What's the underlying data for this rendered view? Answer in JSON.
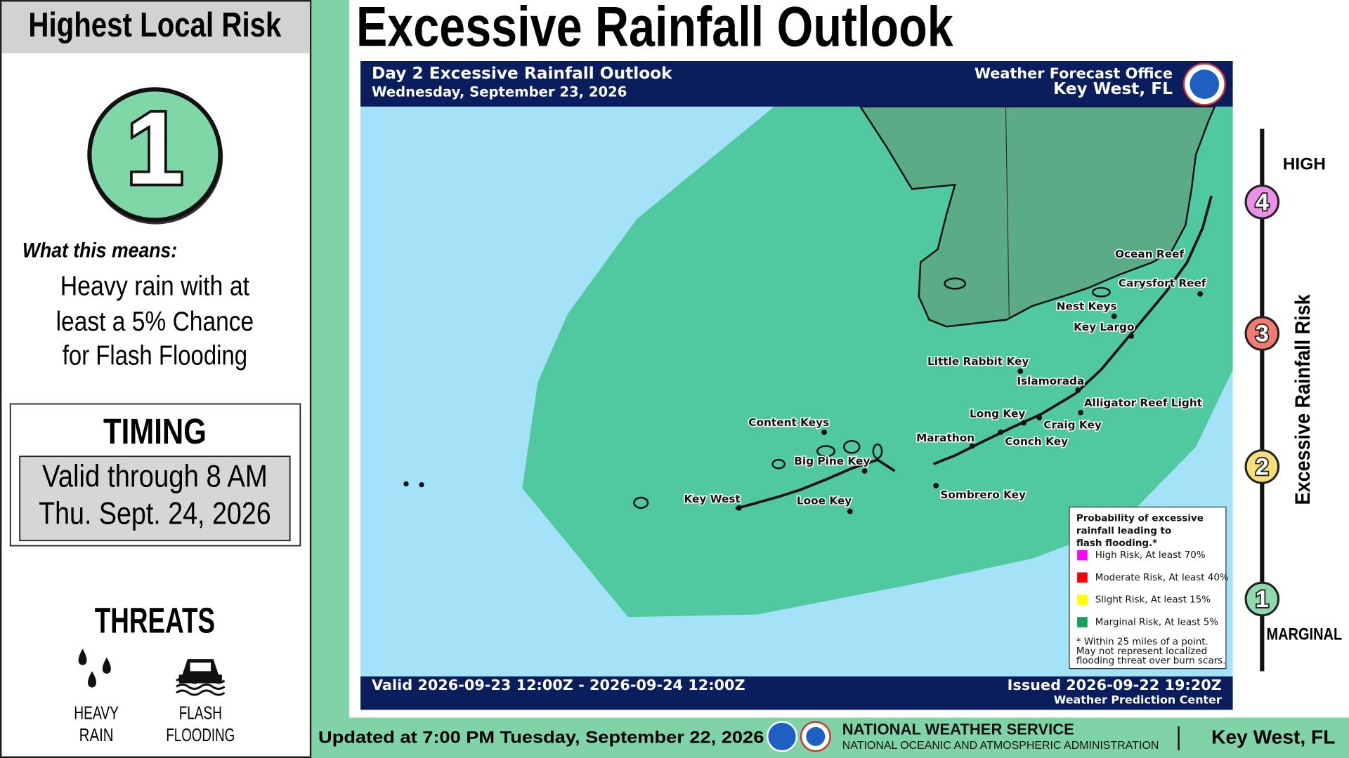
{
  "left_panel": {
    "header": "Highest Local Risk",
    "risk_level": "1",
    "risk_color": "#7fd6a6",
    "meaning_label": "What this means:",
    "meaning_lines": [
      "Heavy rain with at",
      "least a 5% Chance",
      "for Flash Flooding"
    ],
    "timing": {
      "title": "TIMING",
      "lines": [
        "Valid through 8 AM",
        "Thu. Sept. 24, 2026"
      ]
    },
    "threats": {
      "title": "THREATS",
      "items": [
        {
          "label_lines": [
            "HEAVY",
            "RAIN"
          ]
        },
        {
          "label_lines": [
            "FLASH",
            "FLOODING"
          ]
        }
      ]
    }
  },
  "title": "Excessive Rainfall Outlook",
  "map": {
    "header_left": [
      "Day 2 Excessive Rainfall Outlook",
      "Wednesday, September 23, 2026"
    ],
    "header_right": [
      "Weather Forecast Office",
      "Key West, FL"
    ],
    "footer_left": "Valid 2026-09-23 12:00Z - 2026-09-24 12:00Z",
    "footer_right": [
      "Issued 2026-09-22 19:20Z",
      "Weather Prediction Center"
    ],
    "places": [
      "Ocean Reef",
      "Carysfort Reef",
      "Nest Keys",
      "Key Largo",
      "Little Rabbit Key",
      "Islamorada",
      "Alligator Reef Light",
      "Long Key",
      "Craig Key",
      "Marathon",
      "Conch Key",
      "Content Keys",
      "Big Pine Key",
      "Key West",
      "Looe Key",
      "Sombrero Key"
    ],
    "legend": {
      "title_lines": [
        "Probability of excessive",
        "rainfall leading to",
        "flash flooding.*"
      ],
      "items": [
        {
          "label": "High Risk, At least 70%",
          "color": "#ff00ff"
        },
        {
          "label": "Moderate Risk, At least 40%",
          "color": "#ff0000"
        },
        {
          "label": "Slight Risk, At least 15%",
          "color": "#ffff00"
        },
        {
          "label": "Marginal Risk, At least 5%",
          "color": "#1aa05a"
        }
      ],
      "note_lines": [
        "* Within 25 miles of a point.",
        "May not represent localized",
        "flooding threat over burn scars."
      ]
    }
  },
  "risk_scale": {
    "high_label": "HIGH",
    "low_label": "MARGINAL",
    "axis_label": "Excessive Rainfall Risk",
    "levels": [
      {
        "label": "4",
        "color": "#ec8fe8"
      },
      {
        "label": "3",
        "color": "#f27a70"
      },
      {
        "label": "2",
        "color": "#f6df78"
      },
      {
        "label": "1",
        "color": "#8fdaad"
      }
    ]
  },
  "footer": {
    "updated": "Updated at 7:00 PM Tuesday, September 22, 2026",
    "agency": "NATIONAL WEATHER SERVICE",
    "agency_sub": "NATIONAL OCEANIC AND ATMOSPHERIC ADMINISTRATION",
    "office": "Key West, FL"
  }
}
